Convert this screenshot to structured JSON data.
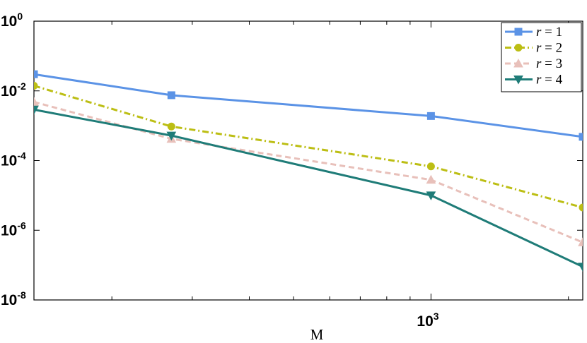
{
  "chart_data": {
    "type": "line",
    "xscale": "log",
    "yscale": "log",
    "xlim": [
      135,
      2150
    ],
    "ylim": [
      1e-08,
      1
    ],
    "x": [
      135,
      270,
      1000,
      2150
    ],
    "xlabel": "M",
    "ylabel": "",
    "title": "",
    "grid": false,
    "legend_position": "top-right",
    "y_ticks": [
      {
        "value": 1,
        "base": "10",
        "exp": "0"
      },
      {
        "value": 0.01,
        "base": "10",
        "exp": "-2"
      },
      {
        "value": 0.0001,
        "base": "10",
        "exp": "-4"
      },
      {
        "value": 1e-06,
        "base": "10",
        "exp": "-6"
      },
      {
        "value": 1e-08,
        "base": "10",
        "exp": "-8"
      }
    ],
    "x_ticks": [
      {
        "value": 1000,
        "base": "10",
        "exp": "3"
      }
    ],
    "x_minor_ticks": [
      200,
      300,
      400,
      500,
      600,
      700,
      800,
      900,
      2000
    ],
    "series": [
      {
        "name": "r = 1",
        "var": "r",
        "num": "1",
        "color": "#5b93e6",
        "dash": "solid",
        "marker": "square",
        "values": [
          0.03,
          0.0075,
          0.0019,
          0.00048
        ]
      },
      {
        "name": "r = 2",
        "var": "r",
        "num": "2",
        "color": "#bcbe14",
        "dash": "dashdot",
        "marker": "circle",
        "values": [
          0.014,
          0.00095,
          6.8e-05,
          4.5e-06
        ]
      },
      {
        "name": "r = 3",
        "var": "r",
        "num": "3",
        "color": "#e8c0ba",
        "dash": "dashed",
        "marker": "triangle-up",
        "values": [
          0.0048,
          0.00042,
          2.8e-05,
          4.5e-07
        ]
      },
      {
        "name": "r = 4",
        "var": "r",
        "num": "4",
        "color": "#1f7c78",
        "dash": "solid",
        "marker": "triangle-down",
        "values": [
          0.0029,
          0.00052,
          1e-05,
          9e-08
        ]
      }
    ]
  }
}
